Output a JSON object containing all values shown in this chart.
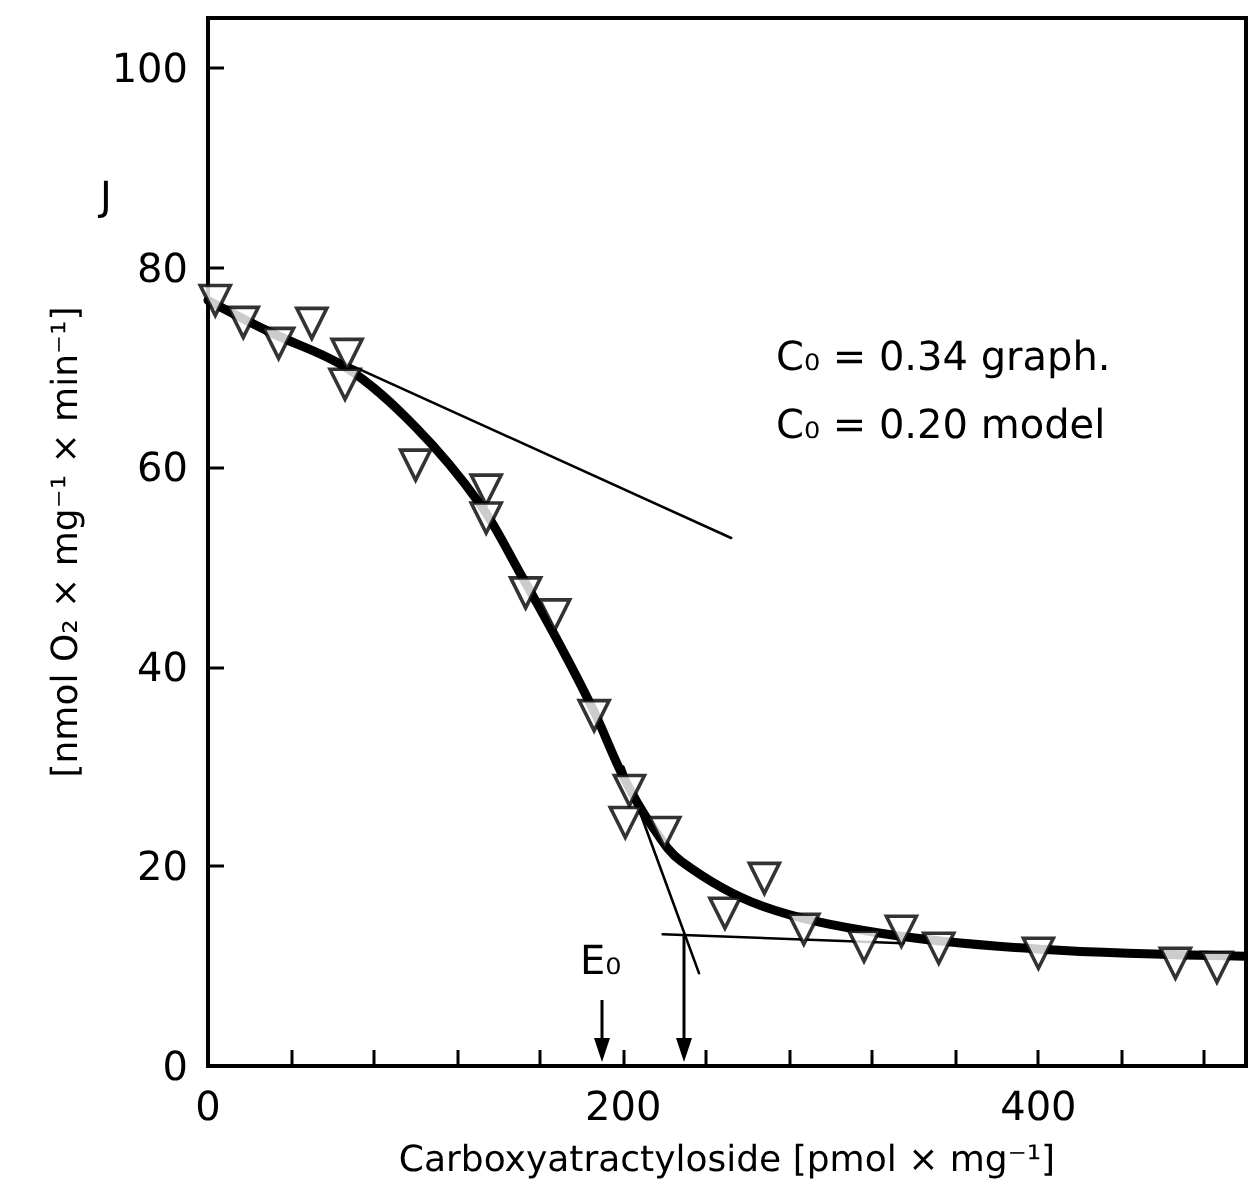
{
  "chart_data": {
    "type": "scatter",
    "xlabel": "Carboxyatractyloside [pmol × mg⁻¹]",
    "ylabel": "[nmol O₂ × mg⁻¹ × min⁻¹]",
    "annotations": [
      "J",
      "C₀ = 0.34 graph.",
      "C₀ = 0.20 model",
      "E₀"
    ],
    "xlim": [
      0,
      500
    ],
    "ylim": [
      0,
      105
    ],
    "xticks": [
      0,
      {
        "value": 40,
        "label": null
      },
      {
        "value": 80,
        "label": null
      },
      {
        "value": 120,
        "label": null
      },
      {
        "value": 160,
        "label": null
      },
      200,
      {
        "value": 240,
        "label": null
      },
      {
        "value": 280,
        "label": null
      },
      {
        "value": 320,
        "label": null
      },
      {
        "value": 360,
        "label": null
      },
      400,
      {
        "value": 440,
        "label": null
      },
      {
        "value": 480,
        "label": null
      }
    ],
    "yticks": [
      0,
      20,
      40,
      60,
      80,
      100
    ],
    "grid": false,
    "series": [
      {
        "marker": "triangle",
        "color": "#000000",
        "x": [
          3.5,
          17,
          34,
          50,
          67,
          66,
          100,
          134,
          134,
          153,
          167,
          186,
          203,
          201,
          220,
          268,
          249,
          287,
          316,
          334,
          352,
          400,
          466,
          486
        ],
        "values": [
          76.7,
          74.5,
          72.4,
          74.4,
          71.3,
          68.3,
          60.2,
          57.7,
          54.9,
          47.4,
          45.2,
          35.1,
          27.6,
          24.4,
          23.4,
          18.8,
          15.3,
          13.7,
          12.0,
          13.5,
          11.8,
          11.3,
          10.3,
          9.9
        ]
      },
      {
        "type": "line",
        "marker": "none",
        "line_style": "solid",
        "color": "#000000",
        "x": [
          0,
          30,
          67,
          100,
          131,
          150,
          170,
          186,
          200,
          214,
          228,
          266,
          324,
          401,
          500
        ],
        "values": [
          76.7,
          73.5,
          69.9,
          64,
          56.3,
          49.5,
          42,
          35.5,
          29,
          24,
          20.5,
          16.1,
          13.3,
          11.7,
          11.0
        ]
      },
      {
        "type": "line",
        "marker": "none",
        "line_style": "solid",
        "color": "#000000",
        "x": [
          0,
          252
        ],
        "values": [
          76.7,
          52.9
        ]
      },
      {
        "type": "line",
        "marker": "none",
        "line_style": "solid",
        "color": "#000000",
        "x": [
          200,
          236.5
        ],
        "values": [
          30,
          9.3
        ]
      },
      {
        "type": "line",
        "marker": "none",
        "line_style": "solid",
        "color": "#000000",
        "x": [
          219,
          335
        ],
        "values": [
          13.2,
          12.3
        ]
      }
    ]
  }
}
